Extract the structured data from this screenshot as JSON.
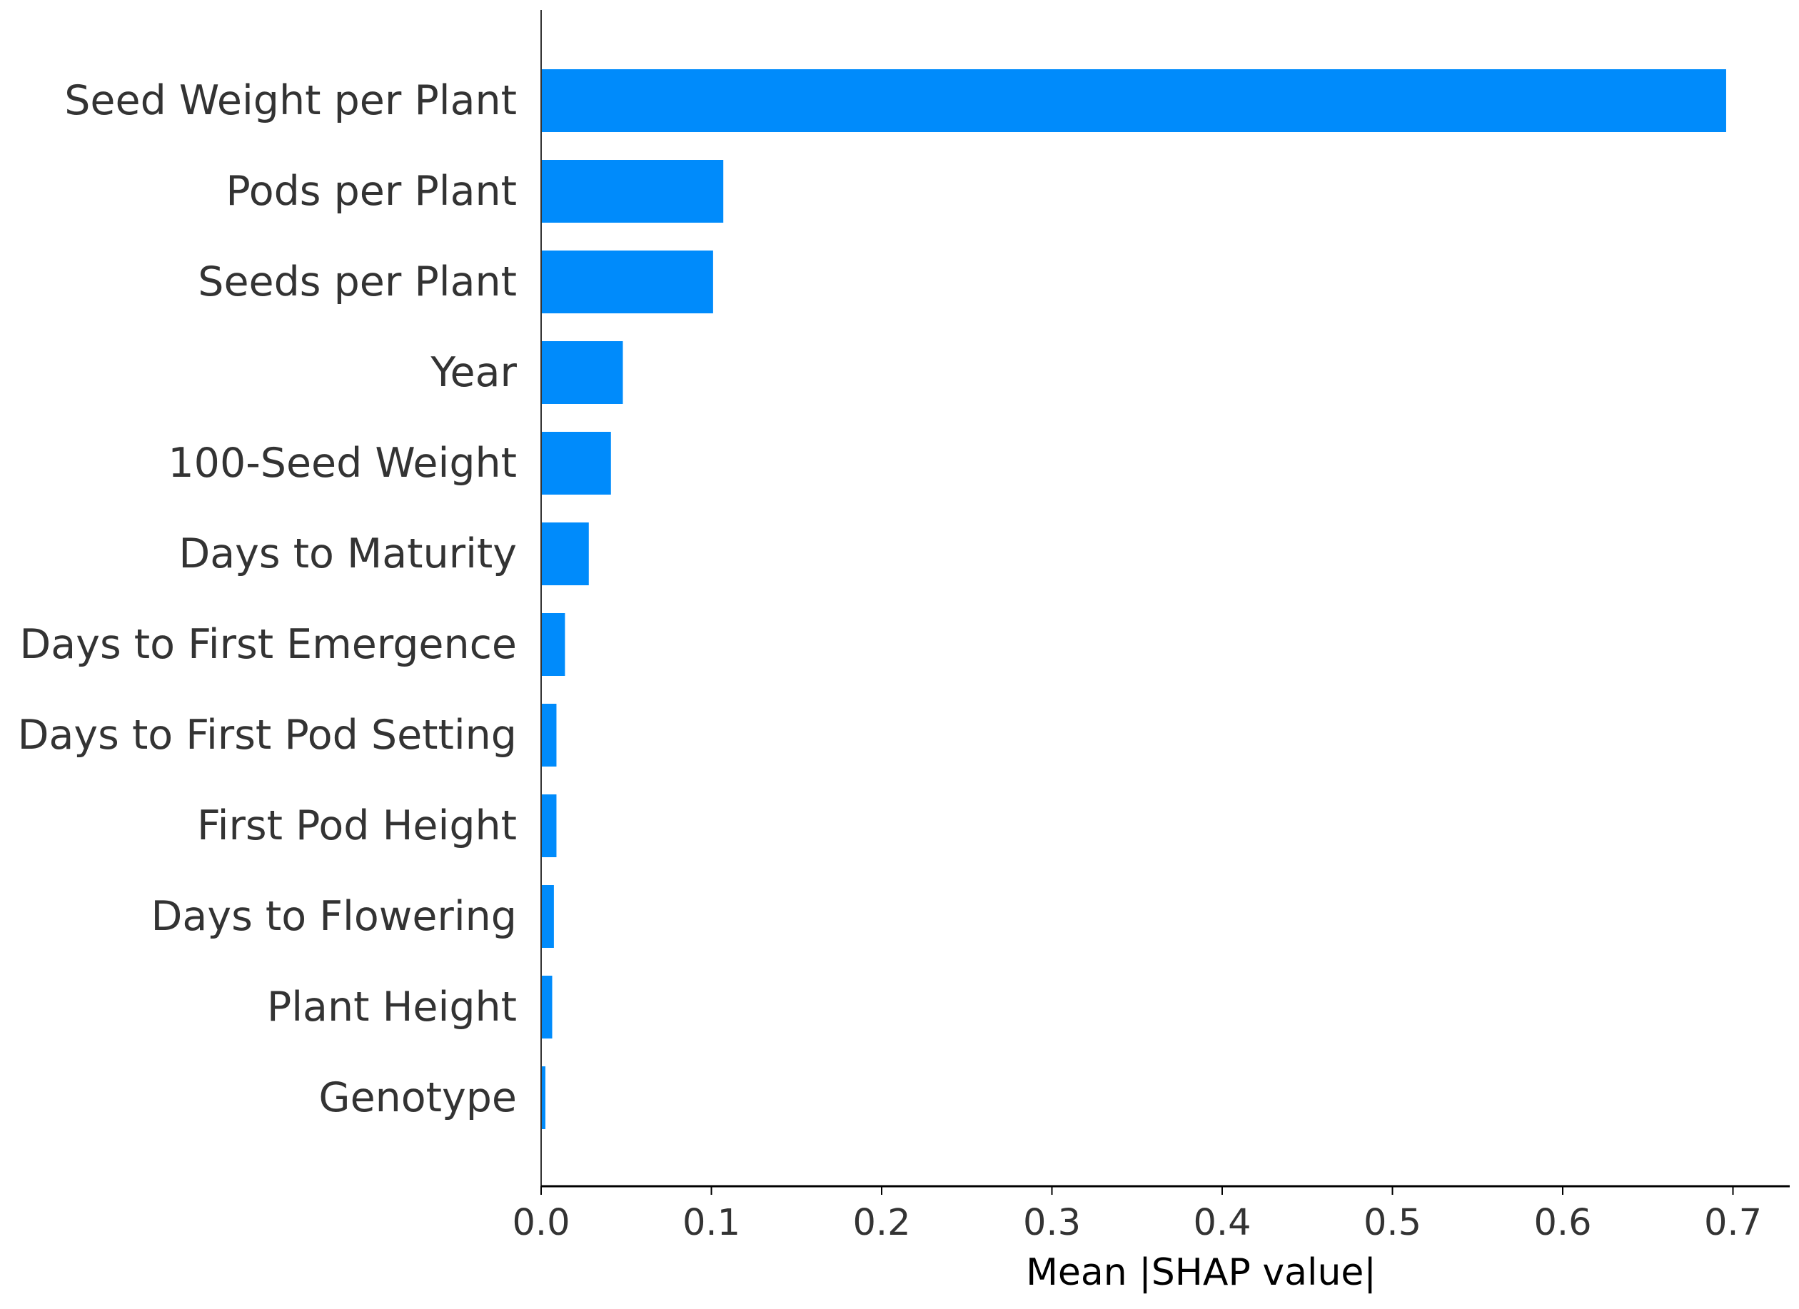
{
  "chart_data": {
    "type": "bar",
    "orientation": "horizontal",
    "categories": [
      "Seed Weight per Plant",
      "Pods per Plant",
      "Seeds per Plant",
      "Year",
      "100-Seed Weight",
      "Days to Maturity",
      "Days to First Emergence",
      "Days to First Pod Setting",
      "First Pod Height",
      "Days to Flowering",
      "Plant Height",
      "Genotype"
    ],
    "values": [
      0.696,
      0.107,
      0.101,
      0.048,
      0.041,
      0.028,
      0.014,
      0.009,
      0.009,
      0.0075,
      0.0065,
      0.0025
    ],
    "xlabel": "Mean |SHAP value|",
    "ylabel": "",
    "xlim": [
      0,
      0.73
    ],
    "xticks": [
      0.0,
      0.1,
      0.2,
      0.3,
      0.4,
      0.5,
      0.6,
      0.7
    ],
    "xtick_labels": [
      "0.0",
      "0.1",
      "0.2",
      "0.3",
      "0.4",
      "0.5",
      "0.6",
      "0.7"
    ],
    "bar_color": "#008bfb",
    "grid": false,
    "legend": "none"
  }
}
